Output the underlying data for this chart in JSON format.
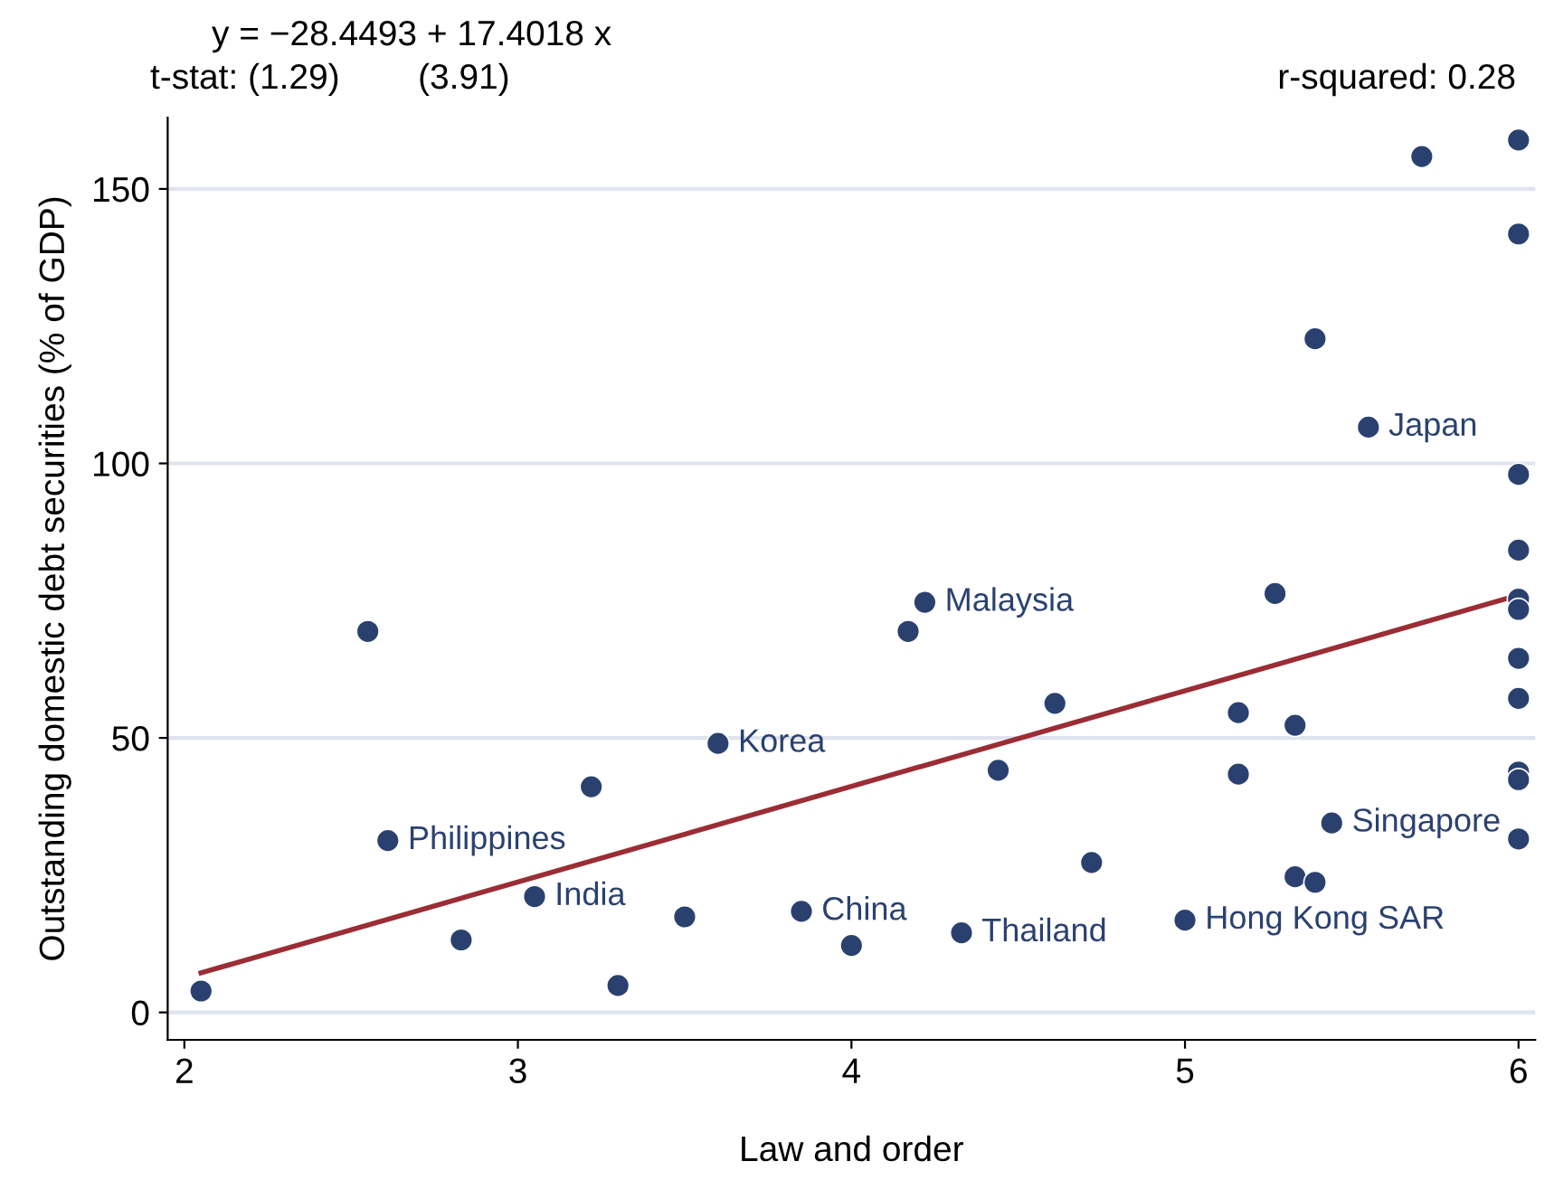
{
  "chart_data": {
    "type": "scatter",
    "xlabel": "Law and order",
    "ylabel": "Outstanding domestic debt securities (% of GDP)",
    "annotations": [
      "y = −28.4493 + 17.4018 x",
      "t-stat: (1.29)        (3.91)",
      "r-squared: 0.28",
      {
        "text": "Philippines",
        "x": 2.61,
        "y": 31.3
      },
      {
        "text": "India",
        "x": 3.05,
        "y": 21.1
      },
      {
        "text": "Korea",
        "x": 3.6,
        "y": 49.0
      },
      {
        "text": "China",
        "x": 3.85,
        "y": 18.4
      },
      {
        "text": "Malaysia",
        "x": 4.22,
        "y": 74.7
      },
      {
        "text": "Thailand",
        "x": 4.33,
        "y": 14.5
      },
      {
        "text": "Hong Kong SAR",
        "x": 5.0,
        "y": 16.8
      },
      {
        "text": "Singapore",
        "x": 5.44,
        "y": 34.5
      },
      {
        "text": "Japan",
        "x": 5.55,
        "y": 106.6
      }
    ],
    "series": [
      {
        "color": "#2a4170",
        "marker": "circle",
        "x": [
          2.05,
          2.55,
          2.61,
          2.83,
          3.05,
          3.22,
          3.3,
          3.5,
          3.6,
          3.85,
          4.0,
          4.17,
          4.22,
          4.33,
          4.44,
          4.61,
          4.72,
          5.0,
          5.16,
          5.16,
          5.27,
          5.33,
          5.33,
          5.39,
          5.39,
          5.44,
          5.55,
          5.71,
          6,
          6,
          6,
          6,
          6,
          6,
          6,
          6,
          6,
          6,
          6
        ],
        "values": [
          3.9,
          69.4,
          31.3,
          13.2,
          21.1,
          41.1,
          4.9,
          17.4,
          49.0,
          18.4,
          12.2,
          69.4,
          74.7,
          14.5,
          44.1,
          56.3,
          27.3,
          16.8,
          54.6,
          43.4,
          76.3,
          52.3,
          24.7,
          23.7,
          122.7,
          34.5,
          106.6,
          155.9,
          158.9,
          141.8,
          98.0,
          84.2,
          75.3,
          73.4,
          64.5,
          57.2,
          43.8,
          42.4,
          31.6
        ]
      },
      {
        "type": "line",
        "color": "#9b2d35",
        "marker": "none",
        "line_style": "solid",
        "x": [
          2.05,
          6
        ],
        "values": [
          7.2,
          76.0
        ]
      }
    ],
    "xlim": [
      1.95,
      6.05
    ],
    "ylim": [
      -5,
      163
    ],
    "xticks": [
      2,
      3,
      4,
      5,
      6
    ],
    "yticks": [
      0,
      50,
      100,
      150
    ],
    "grid": "y",
    "legend": false
  }
}
